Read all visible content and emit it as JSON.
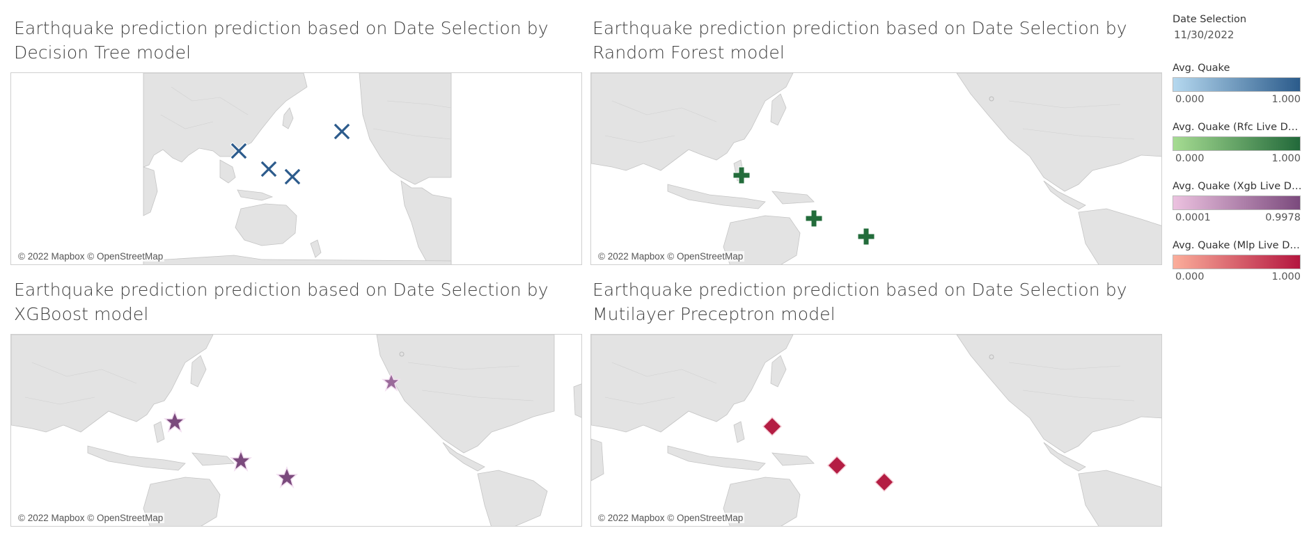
{
  "panels": [
    {
      "title_line1": "Earthquake prediction prediction based on Date Selection by",
      "title_line2": "Decision Tree model",
      "attribution": "© 2022 Mapbox © OpenStreetMap",
      "marker": "x-mark-icon",
      "marker_color": "#2c5b8c"
    },
    {
      "title_line1": "Earthquake prediction prediction based on Date Selection by",
      "title_line2": "Random Forest model",
      "attribution": "© 2022 Mapbox © OpenStreetMap",
      "marker": "plus-mark-icon",
      "marker_color": "#236c3b"
    },
    {
      "title_line1": "Earthquake prediction prediction based on Date Selection by",
      "title_line2": "XGBoost model",
      "attribution": "© 2022 Mapbox © OpenStreetMap",
      "marker": "star-mark-icon",
      "marker_color": "#7b4a7d"
    },
    {
      "title_line1": "Earthquake prediction prediction based on Date Selection by",
      "title_line2": "Mutilayer Preceptron model",
      "attribution": "© 2022 Mapbox © OpenStreetMap",
      "marker": "diamond-mark-icon",
      "marker_color": "#b41d43"
    }
  ],
  "filter": {
    "title": "Date Selection",
    "value": "11/30/2022"
  },
  "legends": [
    {
      "title": "Avg. Quake",
      "min": "0.000",
      "max": "1.000",
      "color_low": "#b5d8ef",
      "color_high": "#2b5b8b"
    },
    {
      "title": "Avg. Quake (Rfc Live Data..",
      "min": "0.000",
      "max": "1.000",
      "color_low": "#a6dc92",
      "color_high": "#22693a"
    },
    {
      "title": "Avg. Quake (Xgb Live Dat..",
      "min": "0.0001",
      "max": "0.9978",
      "color_low": "#ecc2e0",
      "color_high": "#7b4a7d"
    },
    {
      "title": "Avg. Quake (Mlp Live Dat..",
      "min": "0.000",
      "max": "1.000",
      "color_low": "#fbae9b",
      "color_high": "#b4163f"
    }
  ]
}
